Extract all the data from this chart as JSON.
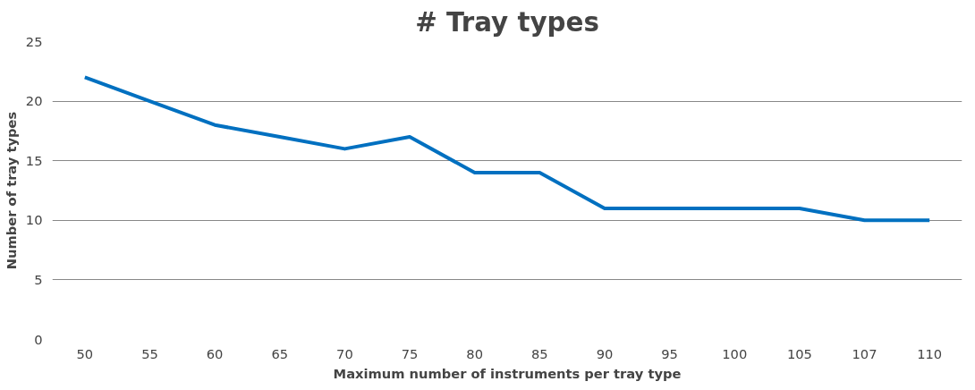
{
  "chart_data": {
    "type": "line",
    "title": "# Tray types",
    "xlabel": "Maximum number of instruments per tray type",
    "ylabel": "Number of tray types",
    "categories": [
      "50",
      "55",
      "60",
      "65",
      "70",
      "75",
      "80",
      "85",
      "90",
      "95",
      "100",
      "105",
      "107",
      "110"
    ],
    "series": [
      {
        "color": "#0070c0",
        "values": [
          22,
          20,
          18,
          17,
          16,
          17,
          14,
          14,
          11,
          11,
          11,
          11,
          10,
          10
        ]
      }
    ],
    "ylim": [
      0,
      25
    ],
    "yticks": [
      0,
      5,
      10,
      15,
      20,
      25
    ],
    "grid": "y",
    "marker": "none",
    "line_style": "solid"
  }
}
